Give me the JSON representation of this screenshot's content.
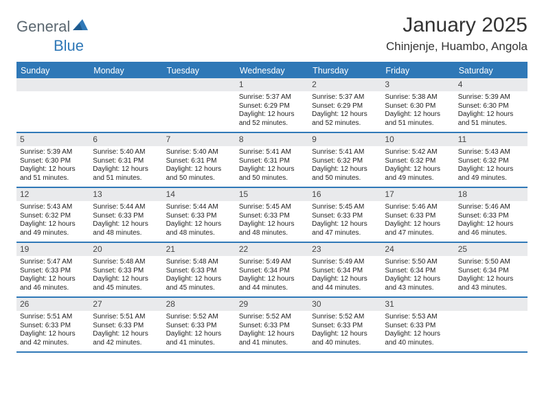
{
  "logo": {
    "text1": "General",
    "text2": "Blue"
  },
  "title": "January 2025",
  "location": "Chinjenje, Huambo, Angola",
  "colors": {
    "header_bg": "#2f78b7",
    "header_text": "#ffffff",
    "daynum_bg": "#e9eaec",
    "border": "#2f78b7",
    "logo_gray": "#5b6770",
    "logo_blue": "#2f78b7"
  },
  "dow": [
    "Sunday",
    "Monday",
    "Tuesday",
    "Wednesday",
    "Thursday",
    "Friday",
    "Saturday"
  ],
  "weeks": [
    [
      null,
      null,
      null,
      {
        "n": "1",
        "sr": "Sunrise: 5:37 AM",
        "ss": "Sunset: 6:29 PM",
        "d1": "Daylight: 12 hours",
        "d2": "and 52 minutes."
      },
      {
        "n": "2",
        "sr": "Sunrise: 5:37 AM",
        "ss": "Sunset: 6:29 PM",
        "d1": "Daylight: 12 hours",
        "d2": "and 52 minutes."
      },
      {
        "n": "3",
        "sr": "Sunrise: 5:38 AM",
        "ss": "Sunset: 6:30 PM",
        "d1": "Daylight: 12 hours",
        "d2": "and 51 minutes."
      },
      {
        "n": "4",
        "sr": "Sunrise: 5:39 AM",
        "ss": "Sunset: 6:30 PM",
        "d1": "Daylight: 12 hours",
        "d2": "and 51 minutes."
      }
    ],
    [
      {
        "n": "5",
        "sr": "Sunrise: 5:39 AM",
        "ss": "Sunset: 6:30 PM",
        "d1": "Daylight: 12 hours",
        "d2": "and 51 minutes."
      },
      {
        "n": "6",
        "sr": "Sunrise: 5:40 AM",
        "ss": "Sunset: 6:31 PM",
        "d1": "Daylight: 12 hours",
        "d2": "and 51 minutes."
      },
      {
        "n": "7",
        "sr": "Sunrise: 5:40 AM",
        "ss": "Sunset: 6:31 PM",
        "d1": "Daylight: 12 hours",
        "d2": "and 50 minutes."
      },
      {
        "n": "8",
        "sr": "Sunrise: 5:41 AM",
        "ss": "Sunset: 6:31 PM",
        "d1": "Daylight: 12 hours",
        "d2": "and 50 minutes."
      },
      {
        "n": "9",
        "sr": "Sunrise: 5:41 AM",
        "ss": "Sunset: 6:32 PM",
        "d1": "Daylight: 12 hours",
        "d2": "and 50 minutes."
      },
      {
        "n": "10",
        "sr": "Sunrise: 5:42 AM",
        "ss": "Sunset: 6:32 PM",
        "d1": "Daylight: 12 hours",
        "d2": "and 49 minutes."
      },
      {
        "n": "11",
        "sr": "Sunrise: 5:43 AM",
        "ss": "Sunset: 6:32 PM",
        "d1": "Daylight: 12 hours",
        "d2": "and 49 minutes."
      }
    ],
    [
      {
        "n": "12",
        "sr": "Sunrise: 5:43 AM",
        "ss": "Sunset: 6:32 PM",
        "d1": "Daylight: 12 hours",
        "d2": "and 49 minutes."
      },
      {
        "n": "13",
        "sr": "Sunrise: 5:44 AM",
        "ss": "Sunset: 6:33 PM",
        "d1": "Daylight: 12 hours",
        "d2": "and 48 minutes."
      },
      {
        "n": "14",
        "sr": "Sunrise: 5:44 AM",
        "ss": "Sunset: 6:33 PM",
        "d1": "Daylight: 12 hours",
        "d2": "and 48 minutes."
      },
      {
        "n": "15",
        "sr": "Sunrise: 5:45 AM",
        "ss": "Sunset: 6:33 PM",
        "d1": "Daylight: 12 hours",
        "d2": "and 48 minutes."
      },
      {
        "n": "16",
        "sr": "Sunrise: 5:45 AM",
        "ss": "Sunset: 6:33 PM",
        "d1": "Daylight: 12 hours",
        "d2": "and 47 minutes."
      },
      {
        "n": "17",
        "sr": "Sunrise: 5:46 AM",
        "ss": "Sunset: 6:33 PM",
        "d1": "Daylight: 12 hours",
        "d2": "and 47 minutes."
      },
      {
        "n": "18",
        "sr": "Sunrise: 5:46 AM",
        "ss": "Sunset: 6:33 PM",
        "d1": "Daylight: 12 hours",
        "d2": "and 46 minutes."
      }
    ],
    [
      {
        "n": "19",
        "sr": "Sunrise: 5:47 AM",
        "ss": "Sunset: 6:33 PM",
        "d1": "Daylight: 12 hours",
        "d2": "and 46 minutes."
      },
      {
        "n": "20",
        "sr": "Sunrise: 5:48 AM",
        "ss": "Sunset: 6:33 PM",
        "d1": "Daylight: 12 hours",
        "d2": "and 45 minutes."
      },
      {
        "n": "21",
        "sr": "Sunrise: 5:48 AM",
        "ss": "Sunset: 6:33 PM",
        "d1": "Daylight: 12 hours",
        "d2": "and 45 minutes."
      },
      {
        "n": "22",
        "sr": "Sunrise: 5:49 AM",
        "ss": "Sunset: 6:34 PM",
        "d1": "Daylight: 12 hours",
        "d2": "and 44 minutes."
      },
      {
        "n": "23",
        "sr": "Sunrise: 5:49 AM",
        "ss": "Sunset: 6:34 PM",
        "d1": "Daylight: 12 hours",
        "d2": "and 44 minutes."
      },
      {
        "n": "24",
        "sr": "Sunrise: 5:50 AM",
        "ss": "Sunset: 6:34 PM",
        "d1": "Daylight: 12 hours",
        "d2": "and 43 minutes."
      },
      {
        "n": "25",
        "sr": "Sunrise: 5:50 AM",
        "ss": "Sunset: 6:34 PM",
        "d1": "Daylight: 12 hours",
        "d2": "and 43 minutes."
      }
    ],
    [
      {
        "n": "26",
        "sr": "Sunrise: 5:51 AM",
        "ss": "Sunset: 6:33 PM",
        "d1": "Daylight: 12 hours",
        "d2": "and 42 minutes."
      },
      {
        "n": "27",
        "sr": "Sunrise: 5:51 AM",
        "ss": "Sunset: 6:33 PM",
        "d1": "Daylight: 12 hours",
        "d2": "and 42 minutes."
      },
      {
        "n": "28",
        "sr": "Sunrise: 5:52 AM",
        "ss": "Sunset: 6:33 PM",
        "d1": "Daylight: 12 hours",
        "d2": "and 41 minutes."
      },
      {
        "n": "29",
        "sr": "Sunrise: 5:52 AM",
        "ss": "Sunset: 6:33 PM",
        "d1": "Daylight: 12 hours",
        "d2": "and 41 minutes."
      },
      {
        "n": "30",
        "sr": "Sunrise: 5:52 AM",
        "ss": "Sunset: 6:33 PM",
        "d1": "Daylight: 12 hours",
        "d2": "and 40 minutes."
      },
      {
        "n": "31",
        "sr": "Sunrise: 5:53 AM",
        "ss": "Sunset: 6:33 PM",
        "d1": "Daylight: 12 hours",
        "d2": "and 40 minutes."
      },
      null
    ]
  ]
}
